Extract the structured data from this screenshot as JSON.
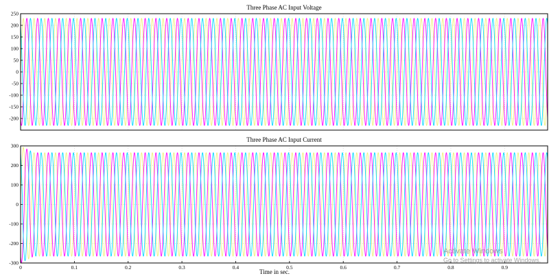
{
  "chart_data": [
    {
      "type": "line",
      "title": "Three Phase AC Input Voltage",
      "xlabel": "",
      "ylabel": "",
      "xlim": [
        0,
        0.98
      ],
      "ylim": [
        -250,
        250
      ],
      "yticks": [
        250,
        200,
        150,
        100,
        50,
        0,
        -50,
        -100,
        -150,
        -200
      ],
      "ytick_labels": [
        "250",
        "200",
        "150",
        "100",
        "50",
        "0",
        "-50",
        "-100",
        "-150",
        "-200"
      ],
      "grid": true,
      "legend": false,
      "waveform": {
        "frequency_hz": 50,
        "amplitude": 230,
        "cycles_visible": 49
      },
      "series": [
        {
          "phase_deg": 0,
          "color": "#f0f07a"
        },
        {
          "phase_deg": -120,
          "color": "#ff00ff"
        },
        {
          "phase_deg": 120,
          "color": "#00d8ff"
        }
      ]
    },
    {
      "type": "line",
      "title": "Three Phase AC Input Current",
      "xlabel": "Time in sec.",
      "ylabel": "",
      "xlim": [
        0,
        0.98
      ],
      "ylim": [
        -300,
        300
      ],
      "xticks": [
        0,
        0.1,
        0.2,
        0.3,
        0.4,
        0.5,
        0.6,
        0.7,
        0.8,
        0.9
      ],
      "xtick_labels": [
        "0",
        "0.1",
        "0.2",
        "0.3",
        "0.4",
        "0.5",
        "0.6",
        "0.7",
        "0.8",
        "0.9"
      ],
      "yticks": [
        300,
        200,
        100,
        0,
        -100,
        -200,
        -300
      ],
      "ytick_labels": [
        "300",
        "200",
        "100",
        "0",
        "-100",
        "-200",
        "-300"
      ],
      "grid": true,
      "legend": false,
      "waveform": {
        "frequency_hz": 50,
        "amplitude": 265,
        "cycles_visible": 49,
        "startup_transient": {
          "duration_s": 0.025,
          "peak": 300
        }
      },
      "series": [
        {
          "phase_deg": 0,
          "color": "#f0f07a"
        },
        {
          "phase_deg": -120,
          "color": "#ff00ff"
        },
        {
          "phase_deg": 120,
          "color": "#00d8ff"
        }
      ]
    }
  ],
  "watermark": {
    "line1": "Activate Windows",
    "line2": "Go to Settings to activate Windows."
  }
}
